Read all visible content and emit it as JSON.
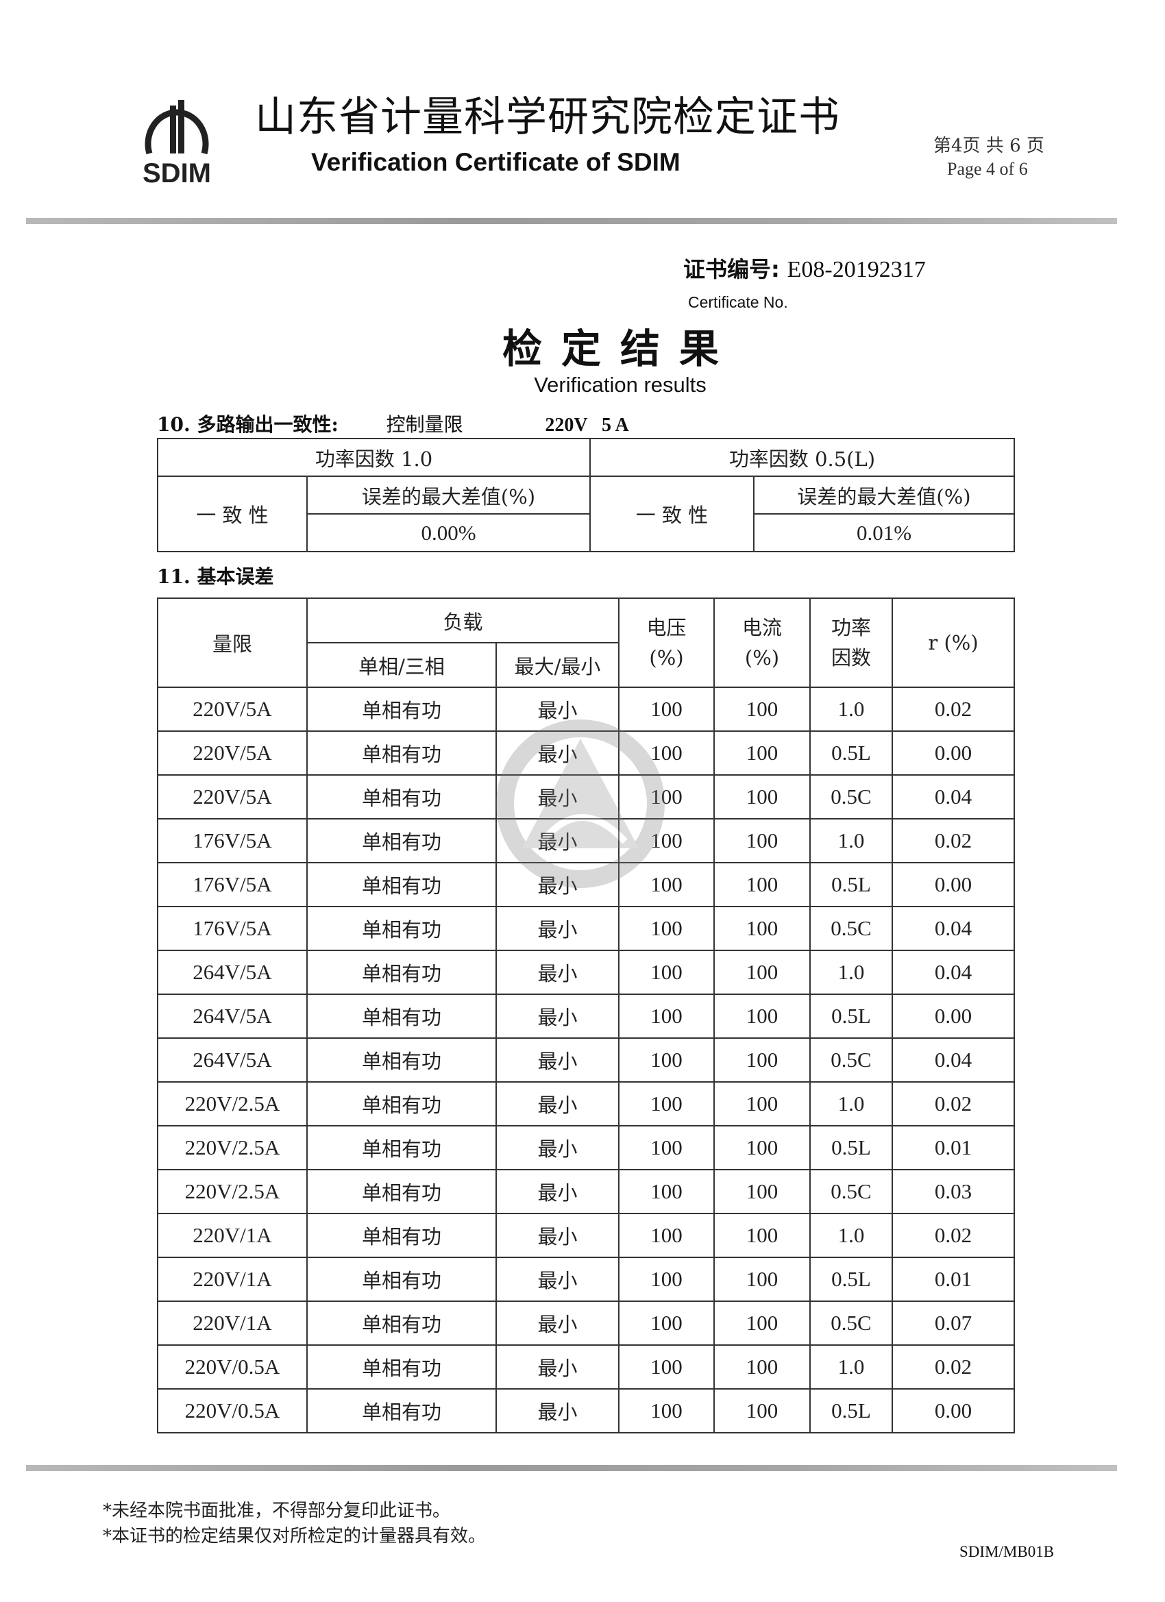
{
  "header": {
    "logo_text": "SDIM",
    "title_cn": "山东省计量科学研究院检定证书",
    "title_en": "Verification Certificate of SDIM",
    "page_cn": "第4页 共 6 页",
    "page_en": "Page 4 of 6"
  },
  "certificate": {
    "label_cn": "证书编号:",
    "number": "E08-20192317",
    "label_en": "Certificate No."
  },
  "results": {
    "title_cn": "检定结果",
    "title_en": "Verification results"
  },
  "section10": {
    "heading": "10. 多路输出一致性:",
    "control_label": "控制量限",
    "control_value": "220V   5 A",
    "pf1_header": "功率因数 1.0",
    "pf2_header": "功率因数 0.5(L)",
    "consistency_label": "一 致 性",
    "max_diff_label": "误差的最大差值(%)",
    "pf1_value": "0.00%",
    "pf2_value": "0.01%"
  },
  "section11": {
    "heading": "11. 基本误差",
    "columns": {
      "range": "量限",
      "load": "负载",
      "phase": "单相/三相",
      "maxmin": "最大/最小",
      "voltage": "电压\n(%)",
      "current": "电流\n(%)",
      "pf": "功率\n因数",
      "r": "r (%)"
    },
    "rows": [
      [
        "220V/5A",
        "单相有功",
        "最小",
        "100",
        "100",
        "1.0",
        "0.02"
      ],
      [
        "220V/5A",
        "单相有功",
        "最小",
        "100",
        "100",
        "0.5L",
        "0.00"
      ],
      [
        "220V/5A",
        "单相有功",
        "最小",
        "100",
        "100",
        "0.5C",
        "0.04"
      ],
      [
        "176V/5A",
        "单相有功",
        "最小",
        "100",
        "100",
        "1.0",
        "0.02"
      ],
      [
        "176V/5A",
        "单相有功",
        "最小",
        "100",
        "100",
        "0.5L",
        "0.00"
      ],
      [
        "176V/5A",
        "单相有功",
        "最小",
        "100",
        "100",
        "0.5C",
        "0.04"
      ],
      [
        "264V/5A",
        "单相有功",
        "最小",
        "100",
        "100",
        "1.0",
        "0.04"
      ],
      [
        "264V/5A",
        "单相有功",
        "最小",
        "100",
        "100",
        "0.5L",
        "0.00"
      ],
      [
        "264V/5A",
        "单相有功",
        "最小",
        "100",
        "100",
        "0.5C",
        "0.04"
      ],
      [
        "220V/2.5A",
        "单相有功",
        "最小",
        "100",
        "100",
        "1.0",
        "0.02"
      ],
      [
        "220V/2.5A",
        "单相有功",
        "最小",
        "100",
        "100",
        "0.5L",
        "0.01"
      ],
      [
        "220V/2.5A",
        "单相有功",
        "最小",
        "100",
        "100",
        "0.5C",
        "0.03"
      ],
      [
        "220V/1A",
        "单相有功",
        "最小",
        "100",
        "100",
        "1.0",
        "0.02"
      ],
      [
        "220V/1A",
        "单相有功",
        "最小",
        "100",
        "100",
        "0.5L",
        "0.01"
      ],
      [
        "220V/1A",
        "单相有功",
        "最小",
        "100",
        "100",
        "0.5C",
        "0.07"
      ],
      [
        "220V/0.5A",
        "单相有功",
        "最小",
        "100",
        "100",
        "1.0",
        "0.02"
      ],
      [
        "220V/0.5A",
        "单相有功",
        "最小",
        "100",
        "100",
        "0.5L",
        "0.00"
      ]
    ]
  },
  "footer": {
    "note1": "*未经本院书面批准，不得部分复印此证书。",
    "note2": "*本证书的检定结果仅对所检定的计量器具有效。",
    "form_no": "SDIM/MB01B"
  }
}
